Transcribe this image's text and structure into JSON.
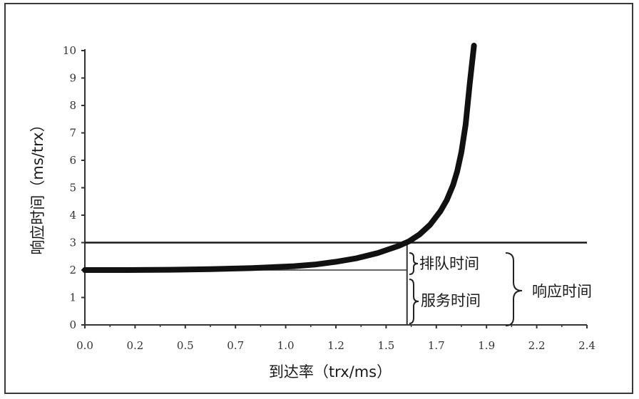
{
  "chart_data": {
    "type": "line",
    "title": "",
    "xlabel": "到达率（trx/ms）",
    "ylabel": "响应时间（ms/trx）",
    "x_ticks": [
      "0.0",
      "0.2",
      "0.5",
      "0.7",
      "1.0",
      "1.2",
      "1.5",
      "1.7",
      "1.9",
      "2.2",
      "2.4"
    ],
    "y_ticks": [
      "0",
      "1",
      "2",
      "3",
      "4",
      "5",
      "6",
      "7",
      "8",
      "9",
      "10"
    ],
    "xlim": [
      0,
      2.4
    ],
    "ylim": [
      0,
      10
    ],
    "series": [
      {
        "x": [
          0.0,
          0.2,
          0.4,
          0.6,
          0.8,
          1.0,
          1.1,
          1.2,
          1.3,
          1.4,
          1.5,
          1.55,
          1.6,
          1.65,
          1.7,
          1.73,
          1.76,
          1.78,
          1.8,
          1.82,
          1.84,
          1.86
        ],
        "values": [
          2.0,
          2.0,
          2.01,
          2.03,
          2.07,
          2.14,
          2.2,
          2.3,
          2.43,
          2.62,
          2.88,
          3.05,
          3.3,
          3.65,
          4.15,
          4.55,
          5.1,
          5.6,
          6.3,
          7.3,
          8.8,
          10.2
        ]
      }
    ],
    "reference_lines": [
      {
        "type": "horizontal",
        "y": 3
      },
      {
        "type": "horizontal",
        "y": 2
      },
      {
        "type": "vertical",
        "x": 1.54
      }
    ],
    "annotations": {
      "queue_time": "排队时间",
      "service_time": "服务时间",
      "response_time": "响应时间"
    },
    "grid": false,
    "legend": "none"
  }
}
